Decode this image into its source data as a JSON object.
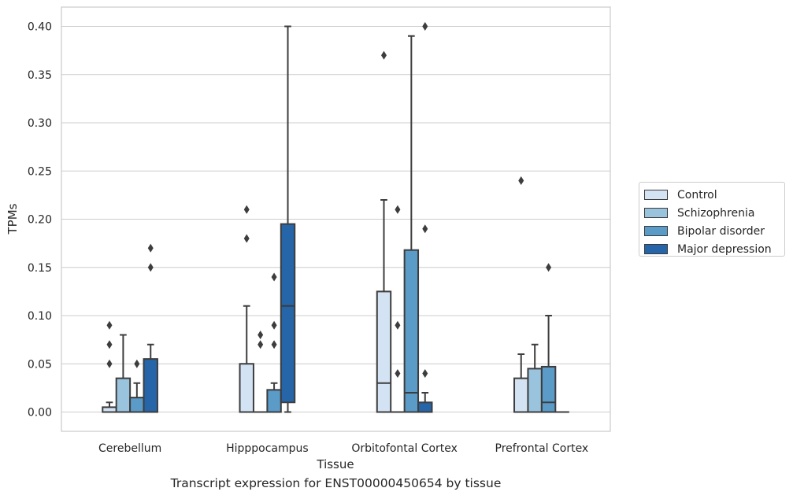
{
  "caption": "Transcript expression for ENST00000450654 by tissue",
  "chart_data": {
    "type": "box",
    "title": "",
    "xlabel": "Tissue",
    "ylabel": "TPMs",
    "ylim": [
      -0.02,
      0.42
    ],
    "yticks": [
      "0.00",
      "0.05",
      "0.10",
      "0.15",
      "0.20",
      "0.25",
      "0.30",
      "0.35",
      "0.40"
    ],
    "grid": true,
    "legend_position": "right",
    "categories": [
      "Cerebellum",
      "Hipppocampus",
      "Orbitofontal Cortex",
      "Prefrontal Cortex"
    ],
    "series": [
      {
        "name": "Control",
        "color": "#d3e3f3",
        "boxes": [
          {
            "min": 0.0,
            "q1": 0.0,
            "median": 0.0,
            "q3": 0.005,
            "max": 0.01,
            "outliers": [
              0.05,
              0.07,
              0.09
            ]
          },
          {
            "min": 0.0,
            "q1": 0.0,
            "median": 0.0,
            "q3": 0.05,
            "max": 0.11,
            "outliers": [
              0.18,
              0.21
            ]
          },
          {
            "min": 0.0,
            "q1": 0.0,
            "median": 0.03,
            "q3": 0.125,
            "max": 0.22,
            "outliers": [
              0.37
            ]
          },
          {
            "min": 0.0,
            "q1": 0.0,
            "median": 0.0,
            "q3": 0.035,
            "max": 0.06,
            "outliers": [
              0.24
            ]
          }
        ]
      },
      {
        "name": "Schizophrenia",
        "color": "#9ac3de",
        "boxes": [
          {
            "min": 0.0,
            "q1": 0.0,
            "median": 0.0,
            "q3": 0.035,
            "max": 0.08,
            "outliers": []
          },
          {
            "min": 0.0,
            "q1": 0.0,
            "median": 0.0,
            "q3": 0.0,
            "max": 0.0,
            "outliers": [
              0.07,
              0.08
            ]
          },
          {
            "min": 0.0,
            "q1": 0.0,
            "median": 0.0,
            "q3": 0.0,
            "max": 0.0,
            "outliers": [
              0.04,
              0.09,
              0.21
            ]
          },
          {
            "min": 0.0,
            "q1": 0.0,
            "median": 0.0,
            "q3": 0.045,
            "max": 0.07,
            "outliers": []
          }
        ]
      },
      {
        "name": "Bipolar disorder",
        "color": "#5a9bc8",
        "boxes": [
          {
            "min": 0.0,
            "q1": 0.0,
            "median": 0.0,
            "q3": 0.015,
            "max": 0.03,
            "outliers": [
              0.05
            ]
          },
          {
            "min": 0.0,
            "q1": 0.0,
            "median": 0.0,
            "q3": 0.023,
            "max": 0.03,
            "outliers": [
              0.07,
              0.09,
              0.14
            ]
          },
          {
            "min": 0.0,
            "q1": 0.0,
            "median": 0.02,
            "q3": 0.168,
            "max": 0.39,
            "outliers": []
          },
          {
            "min": 0.0,
            "q1": 0.0,
            "median": 0.01,
            "q3": 0.047,
            "max": 0.1,
            "outliers": [
              0.15
            ]
          }
        ]
      },
      {
        "name": "Major depression",
        "color": "#2565a8",
        "boxes": [
          {
            "min": 0.0,
            "q1": 0.0,
            "median": 0.0,
            "q3": 0.055,
            "max": 0.07,
            "outliers": [
              0.15,
              0.17
            ]
          },
          {
            "min": 0.0,
            "q1": 0.01,
            "median": 0.11,
            "q3": 0.195,
            "max": 0.4,
            "outliers": []
          },
          {
            "min": 0.0,
            "q1": 0.0,
            "median": 0.0,
            "q3": 0.01,
            "max": 0.02,
            "outliers": [
              0.04,
              0.19,
              0.4
            ]
          },
          {
            "min": 0.0,
            "q1": 0.0,
            "median": 0.0,
            "q3": 0.0,
            "max": 0.0,
            "outliers": []
          }
        ]
      }
    ]
  }
}
